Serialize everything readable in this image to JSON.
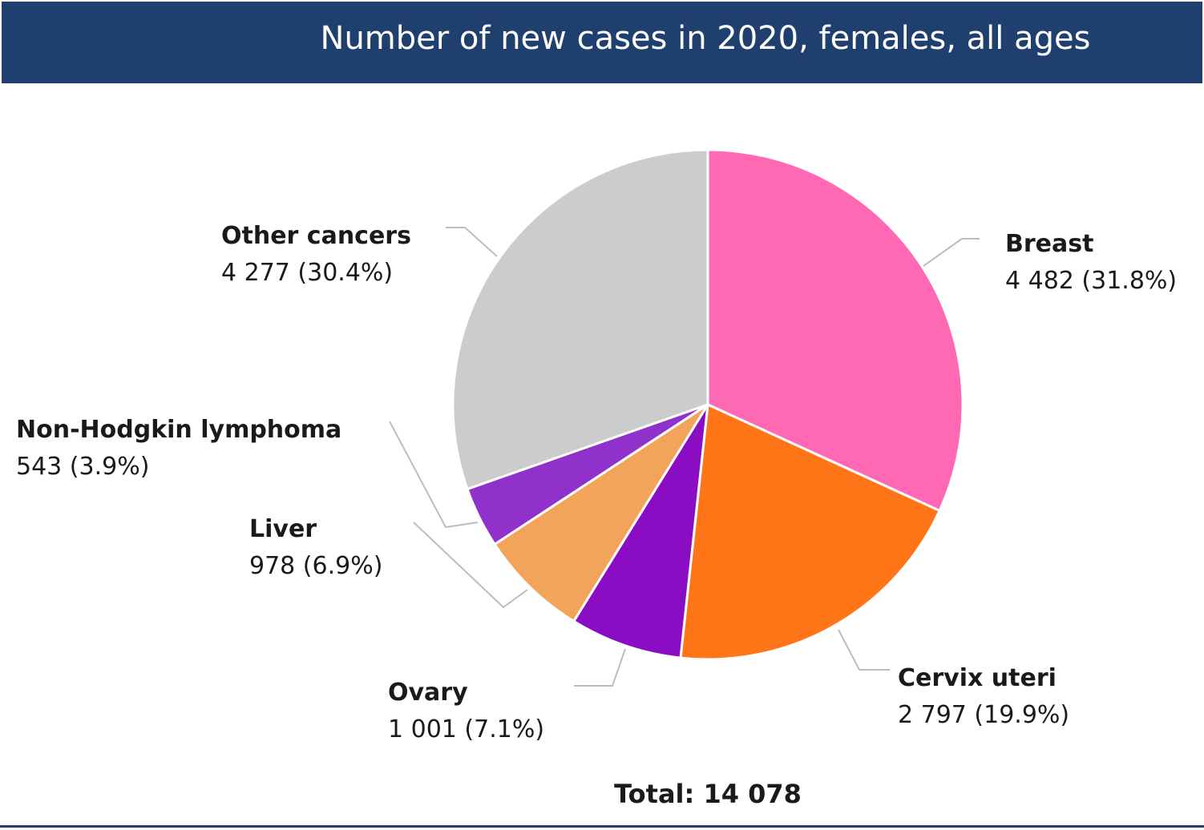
{
  "header": {
    "title": "Number of new cases in 2020, females, all ages"
  },
  "chart_data": {
    "type": "pie",
    "title": "Number of new cases in 2020, females, all ages",
    "start_angle_deg": 0,
    "direction": "clockwise",
    "slices": [
      {
        "name": "Breast",
        "value": 4482,
        "percent_label": "4 482 (31.8%)",
        "color": "#ff69b4"
      },
      {
        "name": "Cervix uteri",
        "value": 2797,
        "percent_label": "2 797 (19.9%)",
        "color": "#ff7518"
      },
      {
        "name": "Ovary",
        "value": 1001,
        "percent_label": "1 001 (7.1%)",
        "color": "#8a0dc4"
      },
      {
        "name": "Liver",
        "value": 978,
        "percent_label": "978 (6.9%)",
        "color": "#f2a55a"
      },
      {
        "name": "Non-Hodgkin lymphoma",
        "value": 543,
        "percent_label": "543 (3.9%)",
        "color": "#9031cc"
      },
      {
        "name": "Other cancers",
        "value": 4277,
        "percent_label": "4 277 (30.4%)",
        "color": "#cccccc"
      }
    ],
    "total_label": "Total: 14 078"
  }
}
